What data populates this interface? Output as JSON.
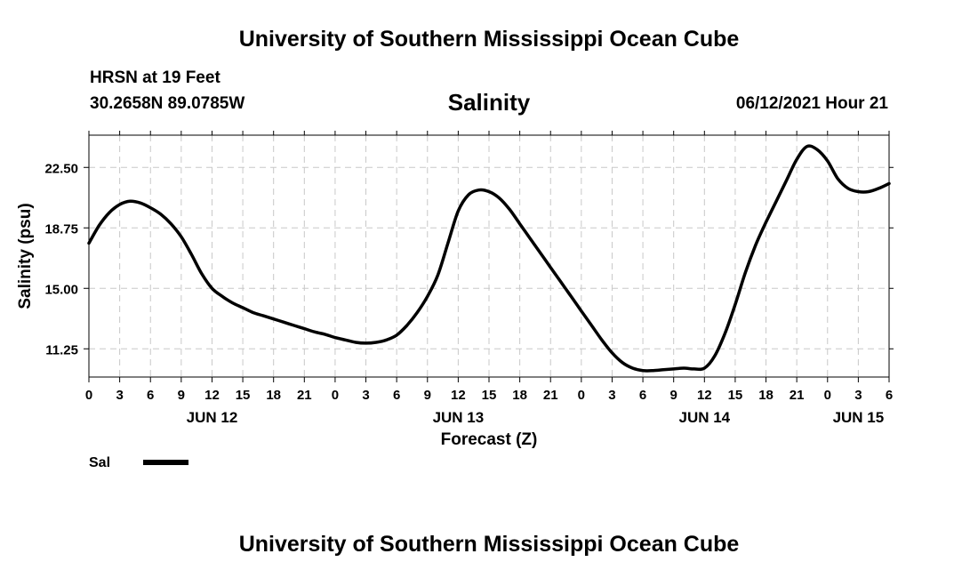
{
  "header": {
    "title": "University of Southern Mississippi Ocean Cube",
    "station": "HRSN at 19 Feet",
    "coordinates": "30.2658N  89.0785W",
    "timestamp": "06/12/2021 Hour 21"
  },
  "footer": {
    "title": "University of Southern Mississippi Ocean Cube"
  },
  "chart_data": {
    "type": "line",
    "title": "Salinity",
    "xlabel": "Forecast (Z)",
    "ylabel": "Salinity (psu)",
    "xlim": [
      0,
      78
    ],
    "ylim": [
      9.5,
      24.5
    ],
    "grid": true,
    "yticks": [
      11.25,
      15.0,
      18.75,
      22.5
    ],
    "ytick_labels": [
      "11.25",
      "15.00",
      "18.75",
      "22.50"
    ],
    "xticks": [
      0,
      3,
      6,
      9,
      12,
      15,
      18,
      21,
      24,
      27,
      30,
      33,
      36,
      39,
      42,
      45,
      48,
      51,
      54,
      57,
      60,
      63,
      66,
      69,
      72,
      75,
      78
    ],
    "xtick_labels": [
      "0",
      "3",
      "6",
      "9",
      "12",
      "15",
      "18",
      "21",
      "0",
      "3",
      "6",
      "9",
      "12",
      "15",
      "18",
      "21",
      "0",
      "3",
      "6",
      "9",
      "12",
      "15",
      "18",
      "21",
      "0",
      "3",
      "6"
    ],
    "day_labels": [
      {
        "x": 12,
        "label": "JUN 12"
      },
      {
        "x": 36,
        "label": "JUN 13"
      },
      {
        "x": 60,
        "label": "JUN 14"
      },
      {
        "x": 75,
        "label": "JUN 15"
      }
    ],
    "legend": {
      "position": "bottom-left",
      "entries": [
        {
          "label": "Sal",
          "color": "#000000"
        }
      ]
    },
    "series": [
      {
        "name": "Sal",
        "color": "#000000",
        "x": [
          0,
          1,
          2,
          3,
          4,
          5,
          6,
          7,
          8,
          9,
          10,
          11,
          12,
          13,
          14,
          15,
          16,
          17,
          18,
          19,
          20,
          21,
          22,
          23,
          24,
          25,
          26,
          27,
          28,
          29,
          30,
          31,
          32,
          33,
          34,
          35,
          36,
          37,
          38,
          39,
          40,
          41,
          42,
          43,
          44,
          45,
          46,
          47,
          48,
          49,
          50,
          51,
          52,
          53,
          54,
          55,
          56,
          57,
          58,
          59,
          60,
          61,
          62,
          63,
          64,
          65,
          66,
          67,
          68,
          69,
          70,
          71,
          72,
          73,
          74,
          75,
          76,
          77,
          78
        ],
        "values": [
          17.8,
          18.9,
          19.7,
          20.2,
          20.4,
          20.3,
          20.0,
          19.6,
          19.0,
          18.2,
          17.1,
          15.9,
          15.0,
          14.5,
          14.1,
          13.8,
          13.5,
          13.3,
          13.1,
          12.9,
          12.7,
          12.5,
          12.3,
          12.15,
          11.95,
          11.8,
          11.65,
          11.6,
          11.65,
          11.8,
          12.1,
          12.7,
          13.5,
          14.5,
          15.8,
          17.8,
          19.8,
          20.8,
          21.1,
          21.0,
          20.6,
          19.9,
          19.0,
          18.1,
          17.2,
          16.3,
          15.4,
          14.5,
          13.6,
          12.7,
          11.8,
          11.0,
          10.4,
          10.05,
          9.9,
          9.9,
          9.95,
          10.0,
          10.05,
          10.0,
          10.05,
          10.8,
          12.2,
          14.0,
          16.0,
          17.7,
          19.1,
          20.4,
          21.7,
          23.0,
          23.8,
          23.6,
          22.9,
          21.8,
          21.2,
          21.0,
          21.0,
          21.2,
          21.5
        ]
      }
    ]
  }
}
